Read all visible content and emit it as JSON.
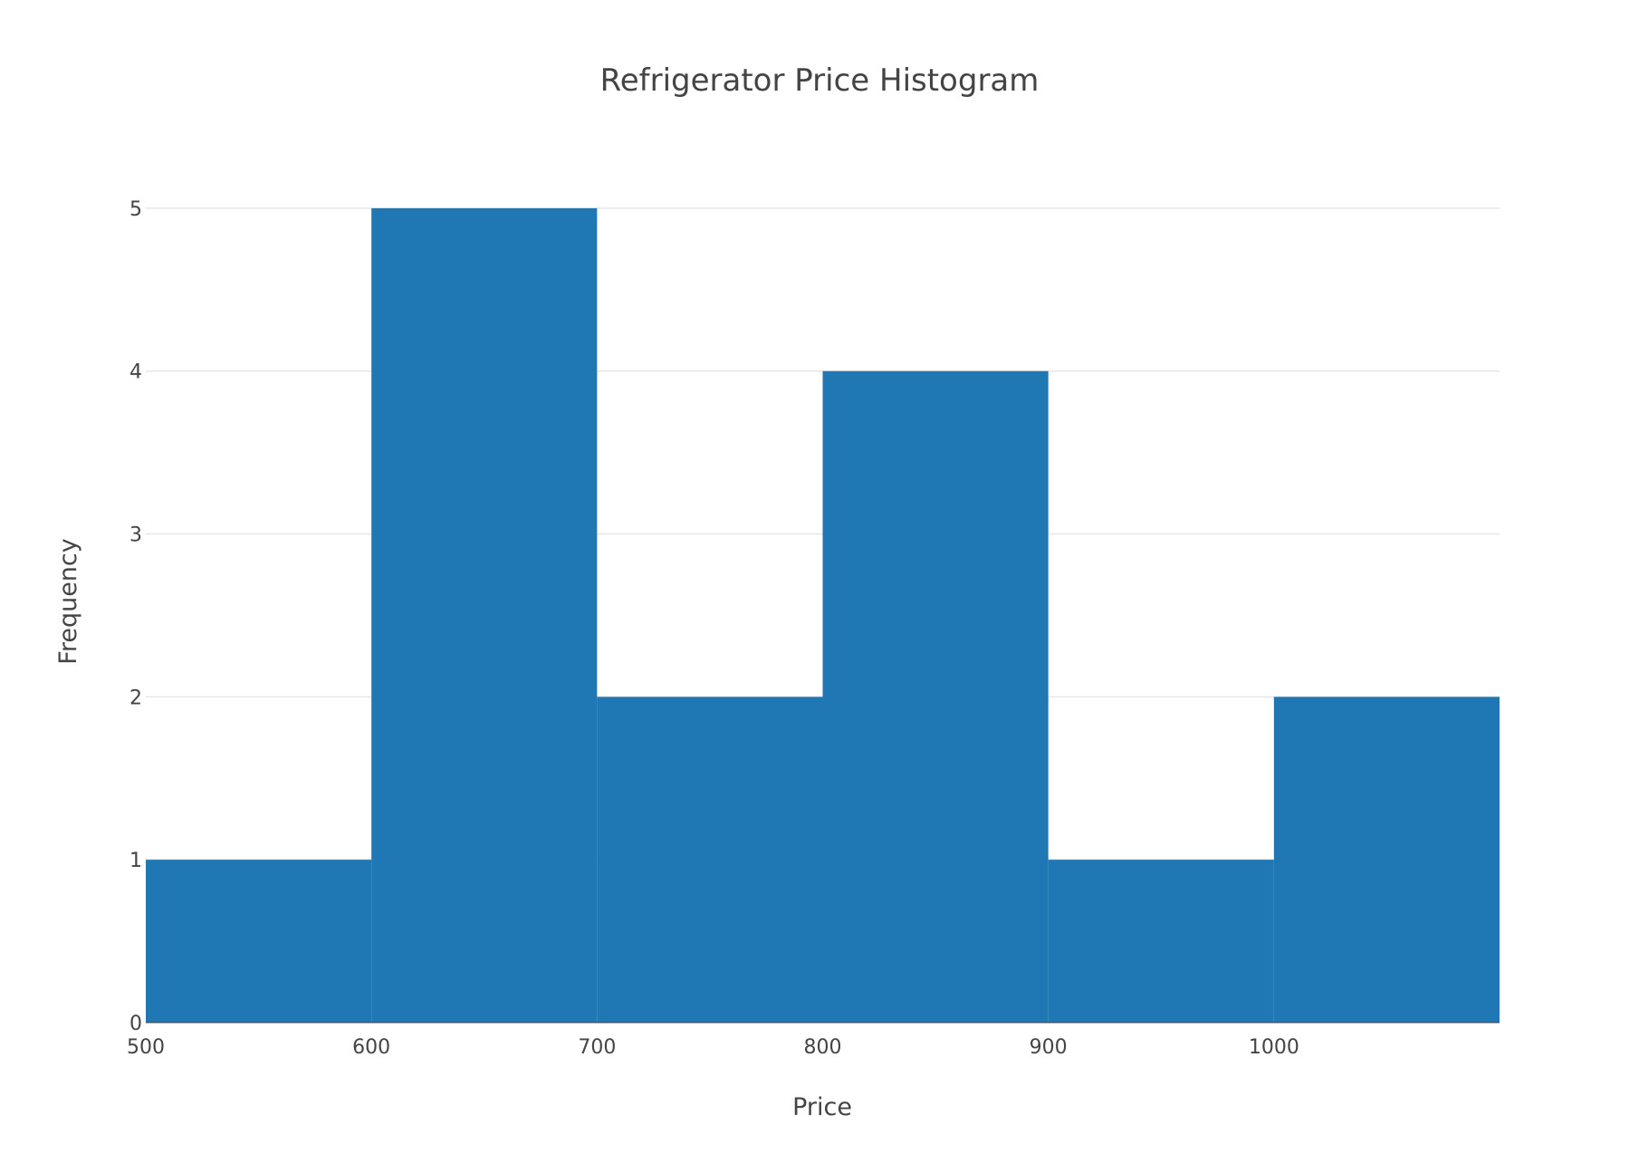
{
  "chart_data": {
    "type": "bar",
    "title": "Refrigerator Price Histogram",
    "xlabel": "Price",
    "ylabel": "Frequency",
    "bins": [
      {
        "start": 500,
        "end": 600,
        "count": 1
      },
      {
        "start": 600,
        "end": 700,
        "count": 5
      },
      {
        "start": 700,
        "end": 800,
        "count": 2
      },
      {
        "start": 800,
        "end": 900,
        "count": 4
      },
      {
        "start": 900,
        "end": 1000,
        "count": 1
      },
      {
        "start": 1000,
        "end": 1100,
        "count": 2
      }
    ],
    "xlim": [
      500,
      1100
    ],
    "ylim": [
      0,
      5.45
    ],
    "x_ticks": [
      500,
      600,
      700,
      800,
      900,
      1000
    ],
    "y_ticks": [
      0,
      1,
      2,
      3,
      4,
      5
    ],
    "grid": true,
    "colors": {
      "bar": "#1f77b4",
      "grid": "#e6e6e6",
      "text": "#444444"
    }
  }
}
